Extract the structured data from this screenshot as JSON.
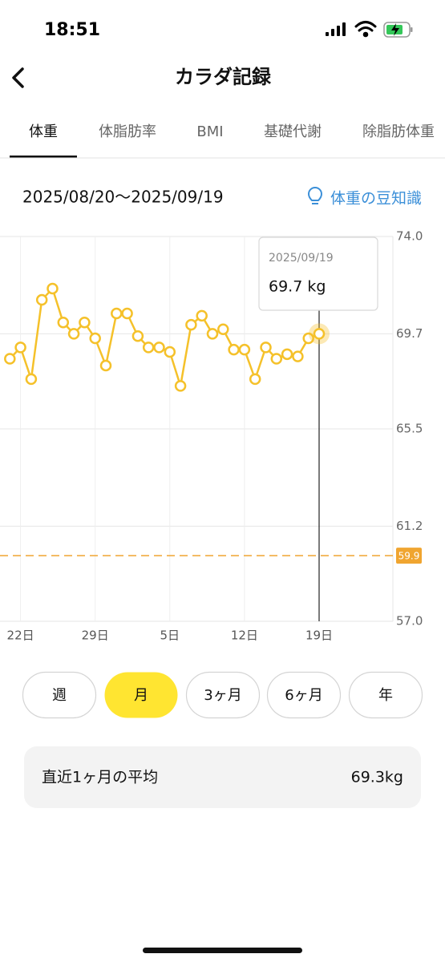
{
  "status_bar": {
    "time": "18:51"
  },
  "header": {
    "title": "カラダ記録"
  },
  "tabs": {
    "items": [
      "体重",
      "体脂肪率",
      "BMI",
      "基礎代謝",
      "除脂肪体重"
    ],
    "active": 0
  },
  "date_range": "2025/08/20〜2025/09/19",
  "tip_link": "体重の豆知識",
  "chart_data": {
    "type": "line",
    "categories": [
      null,
      "22日",
      null,
      null,
      null,
      null,
      null,
      null,
      "29日",
      null,
      null,
      null,
      null,
      null,
      null,
      "5日",
      null,
      null,
      null,
      null,
      null,
      null,
      "12日",
      null,
      null,
      null,
      null,
      null,
      null,
      "19日"
    ],
    "values": [
      68.6,
      69.1,
      67.7,
      71.2,
      71.7,
      70.2,
      69.7,
      70.2,
      69.5,
      68.3,
      70.6,
      70.6,
      69.6,
      69.1,
      69.1,
      68.9,
      67.4,
      70.1,
      70.5,
      69.7,
      69.9,
      69.0,
      69.0,
      67.7,
      69.1,
      68.6,
      68.8,
      68.7,
      69.5,
      69.7
    ],
    "color": "#f5c12a",
    "ylim": [
      57,
      74
    ],
    "yticks": [
      {
        "value": 74,
        "label": "74.0"
      },
      69.7,
      65.5,
      61.2,
      {
        "value": 57,
        "label": "57.0"
      }
    ],
    "grid": true,
    "reference_line": 59.9,
    "reference_color": "#f0a530",
    "tooltip": {
      "date": "2025/09/19",
      "value_label": "69.7 kg"
    }
  },
  "periods": {
    "items": [
      "週",
      "月",
      "3ヶ月",
      "6ヶ月",
      "年"
    ],
    "active": 1
  },
  "average": {
    "label": "直近1ヶ月の平均",
    "value": "69.3kg"
  }
}
